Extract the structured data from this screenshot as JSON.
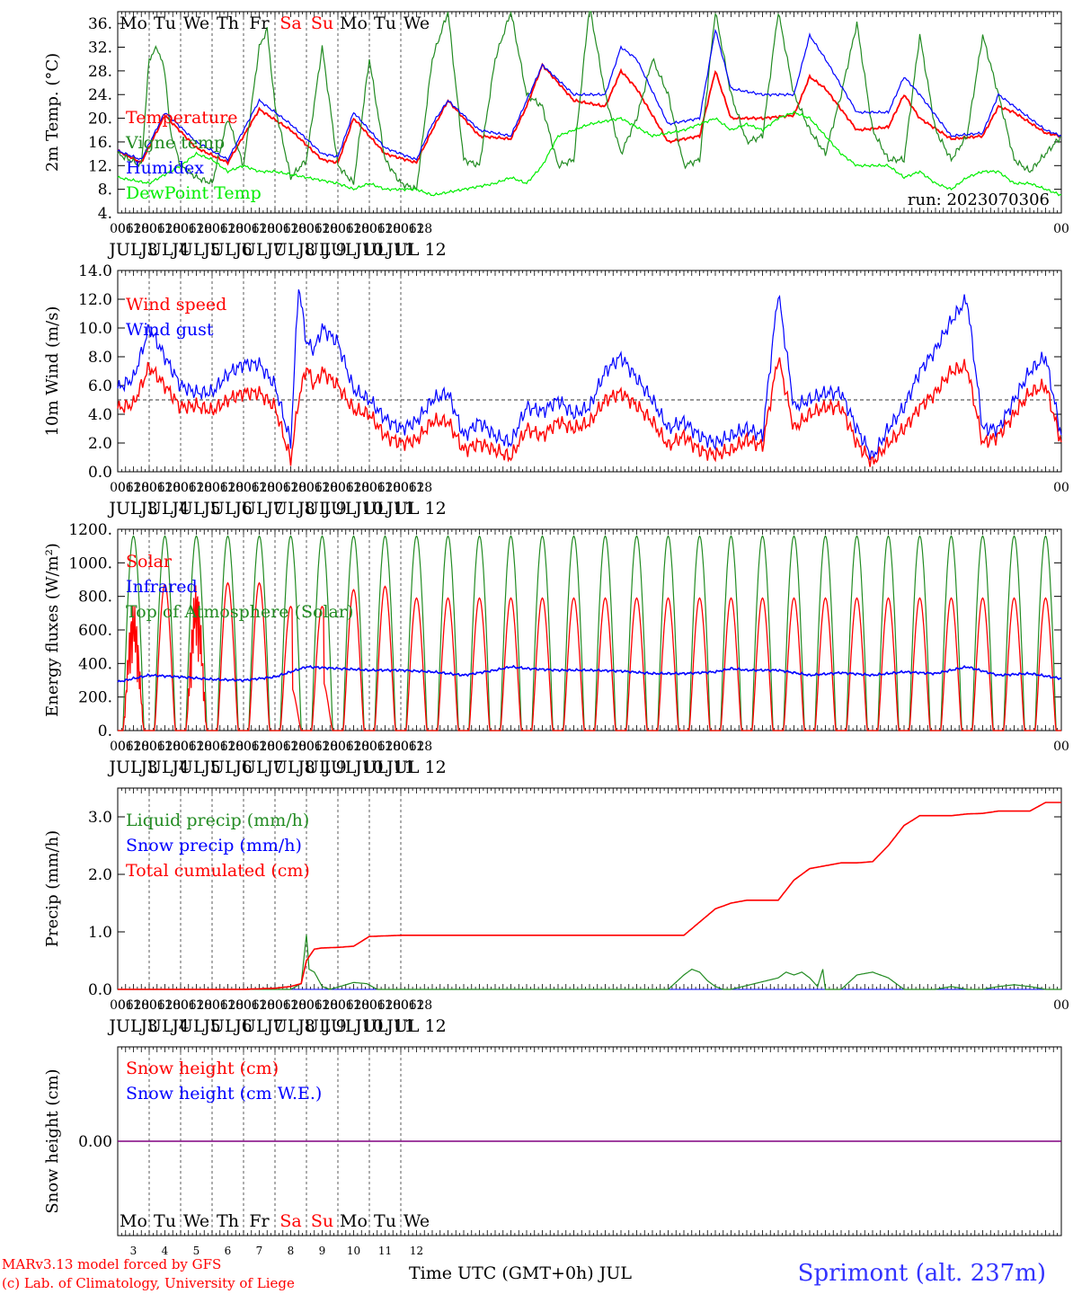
{
  "chart_data": [
    {
      "type": "line",
      "ylabel": "2m Temp. (°C)",
      "ylim": [
        4,
        38
      ],
      "yticks": [
        "4.",
        "8.",
        "12.",
        "16.",
        "20.",
        "24.",
        "28.",
        "32.",
        "36."
      ],
      "yvalues": [
        4,
        8,
        12,
        16,
        20,
        24,
        28,
        32,
        36
      ],
      "run_label": "run: 2023070306",
      "series": [
        {
          "name": "Temperature",
          "color": "#ff0000",
          "x": [
            0,
            18,
            36,
            60,
            84,
            96,
            108,
            132,
            156,
            168,
            180,
            204,
            228,
            240,
            252,
            276,
            300,
            312,
            324,
            348,
            372,
            384,
            396,
            420,
            444,
            456,
            468,
            492,
            516,
            528,
            540,
            564,
            588,
            600,
            612,
            636,
            660,
            672,
            684,
            708,
            720
          ],
          "y": [
            14.5,
            12.5,
            20.5,
            15,
            12.5,
            17,
            21.5,
            18,
            13,
            12.5,
            20,
            14,
            12.5,
            18,
            23,
            17,
            16.5,
            22,
            29,
            23,
            22,
            28,
            25,
            16,
            17,
            28,
            20,
            20,
            20.5,
            27,
            25,
            18,
            18.5,
            24,
            20,
            16.5,
            17,
            22,
            21,
            17.5,
            17
          ]
        },
        {
          "name": "Vigne temp",
          "color": "#228b22",
          "x": [
            0,
            18,
            24,
            30,
            36,
            40,
            48,
            60,
            72,
            84,
            96,
            108,
            114,
            120,
            132,
            144,
            156,
            168,
            180,
            192,
            204,
            216,
            228,
            240,
            252,
            264,
            276,
            288,
            300,
            312,
            324,
            336,
            348,
            360,
            372,
            384,
            396,
            408,
            420,
            432,
            444,
            456,
            468,
            480,
            492,
            504,
            516,
            528,
            540,
            552,
            564,
            576,
            588,
            600,
            612,
            624,
            636,
            648,
            660,
            672,
            684,
            696,
            708,
            720
          ],
          "y": [
            14,
            12,
            30,
            32,
            28,
            18,
            12,
            10,
            9,
            20,
            12,
            32,
            35,
            22,
            10,
            13,
            32,
            12,
            9,
            30,
            13,
            9,
            8,
            30,
            38,
            13,
            12,
            30,
            38,
            24,
            22,
            12,
            13,
            39,
            24,
            14,
            20,
            30,
            24,
            12,
            13,
            38,
            24,
            16,
            17,
            38,
            24,
            18,
            14,
            24,
            36,
            18,
            13,
            13,
            34,
            18,
            13,
            17,
            34,
            24,
            13,
            11,
            14,
            17
          ]
        },
        {
          "name": "Humidex",
          "color": "#0000ff",
          "x": [
            0,
            18,
            36,
            60,
            84,
            96,
            108,
            132,
            156,
            168,
            180,
            204,
            228,
            240,
            252,
            276,
            300,
            312,
            324,
            348,
            372,
            384,
            396,
            420,
            444,
            456,
            468,
            492,
            516,
            528,
            540,
            564,
            588,
            600,
            612,
            636,
            660,
            672,
            684,
            708,
            720
          ],
          "y": [
            14.5,
            13,
            21,
            16,
            13,
            18,
            23,
            19,
            14,
            13.5,
            21,
            15,
            13,
            19,
            23,
            18,
            17,
            23,
            29,
            24,
            24,
            32,
            30,
            19,
            20,
            35,
            25,
            24,
            24,
            34,
            30,
            21,
            21,
            27,
            24,
            17,
            17.5,
            24,
            22,
            18,
            17
          ]
        },
        {
          "name": "DewPoint Temp",
          "color": "#00ee00",
          "x": [
            0,
            24,
            48,
            60,
            72,
            84,
            96,
            108,
            120,
            144,
            168,
            180,
            192,
            204,
            216,
            228,
            240,
            264,
            288,
            300,
            312,
            324,
            336,
            360,
            384,
            408,
            432,
            444,
            456,
            468,
            480,
            492,
            504,
            516,
            528,
            540,
            552,
            564,
            588,
            600,
            612,
            624,
            636,
            648,
            660,
            672,
            684,
            696,
            708,
            720
          ],
          "y": [
            10,
            9,
            12,
            14,
            13,
            11,
            12,
            11,
            11,
            10,
            9,
            8,
            9,
            8,
            8,
            8,
            7,
            8,
            9,
            10,
            9,
            12,
            17,
            19,
            20,
            17,
            18,
            19,
            20,
            18,
            19,
            18,
            20,
            21,
            20,
            17,
            14,
            12,
            12,
            10,
            11,
            9,
            8,
            10,
            11,
            11,
            9,
            9,
            8,
            7
          ]
        }
      ]
    },
    {
      "type": "line",
      "ylabel": "10m Wind (m/s)",
      "ylim": [
        0,
        14
      ],
      "yticks": [
        "0.0",
        "2.0",
        "4.0",
        "6.0",
        "8.0",
        "10.0",
        "12.0",
        "14.0"
      ],
      "yvalues": [
        0,
        2,
        4,
        6,
        8,
        10,
        12,
        14
      ],
      "reference_line": 5,
      "series": [
        {
          "name": "Wind speed",
          "color": "#ff0000",
          "x": [
            0,
            12,
            24,
            36,
            48,
            60,
            72,
            84,
            96,
            108,
            120,
            132,
            138,
            144,
            150,
            156,
            168,
            180,
            192,
            204,
            216,
            228,
            240,
            252,
            264,
            276,
            288,
            300,
            312,
            324,
            336,
            348,
            360,
            372,
            384,
            396,
            408,
            420,
            432,
            444,
            456,
            468,
            480,
            492,
            504,
            516,
            528,
            540,
            552,
            564,
            576,
            588,
            600,
            612,
            624,
            636,
            648,
            660,
            672,
            684,
            696,
            708,
            720
          ],
          "y": [
            4.4,
            4.7,
            7.3,
            6.0,
            4.5,
            4.6,
            4.2,
            5.0,
            5.5,
            5.5,
            4.5,
            0.8,
            5.0,
            7.3,
            6.0,
            7.0,
            6.0,
            4.3,
            4.0,
            2.5,
            2.0,
            2.2,
            3.5,
            3.5,
            1.5,
            2.0,
            1.5,
            1.0,
            3.0,
            2.5,
            3.5,
            3.0,
            3.4,
            5.0,
            5.5,
            4.6,
            3.5,
            1.8,
            2.5,
            1.5,
            1.2,
            1.5,
            2.2,
            1.8,
            8.0,
            3.0,
            4.0,
            4.5,
            4.5,
            2.0,
            0.6,
            2.0,
            3.0,
            4.5,
            5.5,
            7.0,
            7.3,
            2.0,
            2.5,
            4.0,
            5.5,
            6.0,
            2.0
          ]
        },
        {
          "name": "Wind gust",
          "color": "#0000ff",
          "x": [
            0,
            12,
            24,
            36,
            48,
            60,
            72,
            84,
            96,
            108,
            120,
            132,
            138,
            144,
            150,
            156,
            168,
            180,
            192,
            204,
            216,
            228,
            240,
            252,
            264,
            276,
            288,
            300,
            312,
            324,
            336,
            348,
            360,
            372,
            384,
            396,
            408,
            420,
            432,
            444,
            456,
            468,
            480,
            492,
            504,
            516,
            528,
            540,
            552,
            564,
            576,
            588,
            600,
            612,
            624,
            636,
            648,
            660,
            672,
            684,
            696,
            708,
            720
          ],
          "y": [
            5.8,
            6.5,
            10.0,
            8.0,
            6.0,
            5.5,
            5.5,
            6.8,
            7.5,
            7.5,
            6.0,
            2.0,
            13.0,
            9.0,
            8.5,
            10.0,
            9.0,
            5.7,
            5.0,
            3.7,
            3.0,
            3.5,
            5.0,
            5.5,
            2.5,
            3.5,
            2.5,
            2.0,
            4.5,
            4.2,
            5.0,
            4.0,
            4.5,
            7.0,
            8.0,
            6.5,
            5.0,
            3.0,
            3.5,
            2.5,
            2.0,
            2.5,
            3.0,
            2.5,
            12.5,
            4.5,
            5.0,
            5.5,
            5.5,
            3.0,
            1.0,
            3.0,
            4.5,
            7.0,
            8.5,
            10.5,
            12.0,
            3.0,
            3.0,
            5.0,
            7.0,
            8.0,
            2.5
          ]
        }
      ]
    },
    {
      "type": "line",
      "ylabel": "Energy fluxes (W/m²)",
      "ylim": [
        0,
        1200
      ],
      "yticks": [
        "0.",
        "200.",
        "400.",
        "600.",
        "800.",
        "1000.",
        "1200."
      ],
      "yvalues": [
        0,
        200,
        400,
        600,
        800,
        1000,
        1200
      ],
      "series": [
        {
          "name": "Solar",
          "color": "#ff0000",
          "daily_peaks": [
            760,
            870,
            880,
            880,
            880,
            740,
            740,
            840,
            860,
            790
          ]
        },
        {
          "name": "Infrared",
          "color": "#0000ff",
          "x": [
            0,
            24,
            48,
            72,
            96,
            120,
            144,
            168,
            192,
            216,
            240,
            264,
            288,
            300,
            312,
            336,
            360,
            384,
            408,
            432,
            456,
            468,
            480,
            504,
            528,
            552,
            576,
            600,
            624,
            648,
            672,
            696,
            720
          ],
          "y": [
            290,
            330,
            320,
            305,
            300,
            320,
            380,
            370,
            360,
            360,
            350,
            330,
            360,
            380,
            370,
            360,
            360,
            355,
            340,
            340,
            350,
            370,
            360,
            360,
            330,
            345,
            330,
            350,
            340,
            380,
            330,
            340,
            310
          ]
        },
        {
          "name": "Top of Atmosphere (Solar)",
          "color": "#228b22",
          "daily_peak": 1160
        }
      ]
    },
    {
      "type": "line",
      "ylabel": "Precip (mm/h)",
      "ylim": [
        0,
        3.5
      ],
      "yticks": [
        "0.0",
        "1.0",
        "2.0",
        "3.0"
      ],
      "yvalues": [
        0,
        1,
        2,
        3
      ],
      "series": [
        {
          "name": "Liquid precip (mm/h)",
          "color": "#228b22",
          "x": [
            0,
            132,
            140,
            144,
            146,
            150,
            156,
            162,
            180,
            190,
            198,
            204,
            216,
            420,
            432,
            438,
            444,
            450,
            456,
            462,
            468,
            504,
            510,
            516,
            522,
            528,
            534,
            538,
            540,
            552,
            564,
            576,
            588,
            600,
            624,
            636,
            648,
            660,
            672,
            684,
            696,
            708,
            720
          ],
          "y": [
            0,
            0,
            0.1,
            0.95,
            0.35,
            0.3,
            0.05,
            0,
            0.12,
            0.1,
            0,
            0,
            0,
            0,
            0.25,
            0.35,
            0.3,
            0.15,
            0.05,
            0,
            0,
            0.2,
            0.3,
            0.25,
            0.3,
            0.2,
            0.05,
            0.35,
            0,
            0,
            0.25,
            0.3,
            0.2,
            0,
            0,
            0.05,
            0,
            0,
            0.05,
            0.08,
            0.05,
            0,
            0
          ]
        },
        {
          "name": "Snow precip (mm/h)",
          "color": "#0000ff",
          "x": [
            0,
            720
          ],
          "y": [
            0,
            0
          ]
        },
        {
          "name": "Total cumulated (cm)",
          "color": "#ff0000",
          "x": [
            0,
            96,
            120,
            132,
            140,
            144,
            150,
            156,
            168,
            180,
            192,
            216,
            432,
            456,
            468,
            480,
            492,
            504,
            516,
            528,
            540,
            552,
            564,
            576,
            588,
            600,
            612,
            624,
            636,
            648,
            660,
            672,
            696,
            708,
            720
          ],
          "y": [
            0,
            0,
            0.02,
            0.05,
            0.1,
            0.5,
            0.7,
            0.72,
            0.73,
            0.75,
            0.92,
            0.94,
            0.94,
            1.4,
            1.5,
            1.55,
            1.55,
            1.55,
            1.9,
            2.1,
            2.15,
            2.2,
            2.2,
            2.22,
            2.5,
            2.85,
            3.02,
            3.02,
            3.02,
            3.05,
            3.06,
            3.1,
            3.1,
            3.25,
            3.25
          ]
        }
      ]
    },
    {
      "type": "line",
      "ylabel": "Snow height (cm)",
      "yticks": [
        "0.00"
      ],
      "yvalues": [
        0
      ],
      "series": [
        {
          "name": "Snow height (cm)",
          "color": "#ff0000",
          "x": [
            0,
            720
          ],
          "y": [
            0,
            0
          ]
        },
        {
          "name": "Snow height (cm W.E.)",
          "color": "#0000ff",
          "x": [
            0,
            720
          ],
          "y": [
            0,
            0
          ]
        }
      ]
    }
  ],
  "x_axis": {
    "hour_labels": [
      "00",
      "06",
      "12",
      "18"
    ],
    "final_hour_label": "00",
    "date_labels": [
      "JUL  3",
      "JUL  4",
      "JUL  5",
      "JUL  6",
      "JUL  7",
      "JUL  8",
      "JUL  9",
      "JUL 10",
      "JUL 11",
      "JUL 12"
    ],
    "bottom_day_numbers": [
      "3",
      "4",
      "5",
      "6",
      "7",
      "8",
      "9",
      "10",
      "11",
      "12"
    ],
    "title": "Time UTC (GMT+0h) JUL"
  },
  "weekdays": [
    {
      "label": "Mo",
      "weekend": false
    },
    {
      "label": "Tu",
      "weekend": false
    },
    {
      "label": "We",
      "weekend": false
    },
    {
      "label": "Th",
      "weekend": false
    },
    {
      "label": "Fr",
      "weekend": false
    },
    {
      "label": "Sa",
      "weekend": true
    },
    {
      "label": "Su",
      "weekend": true
    },
    {
      "label": "Mo",
      "weekend": false
    },
    {
      "label": "Tu",
      "weekend": false
    },
    {
      "label": "We",
      "weekend": false
    }
  ],
  "colors": {
    "weekday": "#000000",
    "weekend": "#ff0000",
    "snow_line": "#800080"
  },
  "footer": {
    "credit_line1": "MARv3.13 model forced by GFS",
    "credit_line2": "(c) Lab. of Climatology, University of Liege",
    "station": "Sprimont (alt. 237m)"
  }
}
